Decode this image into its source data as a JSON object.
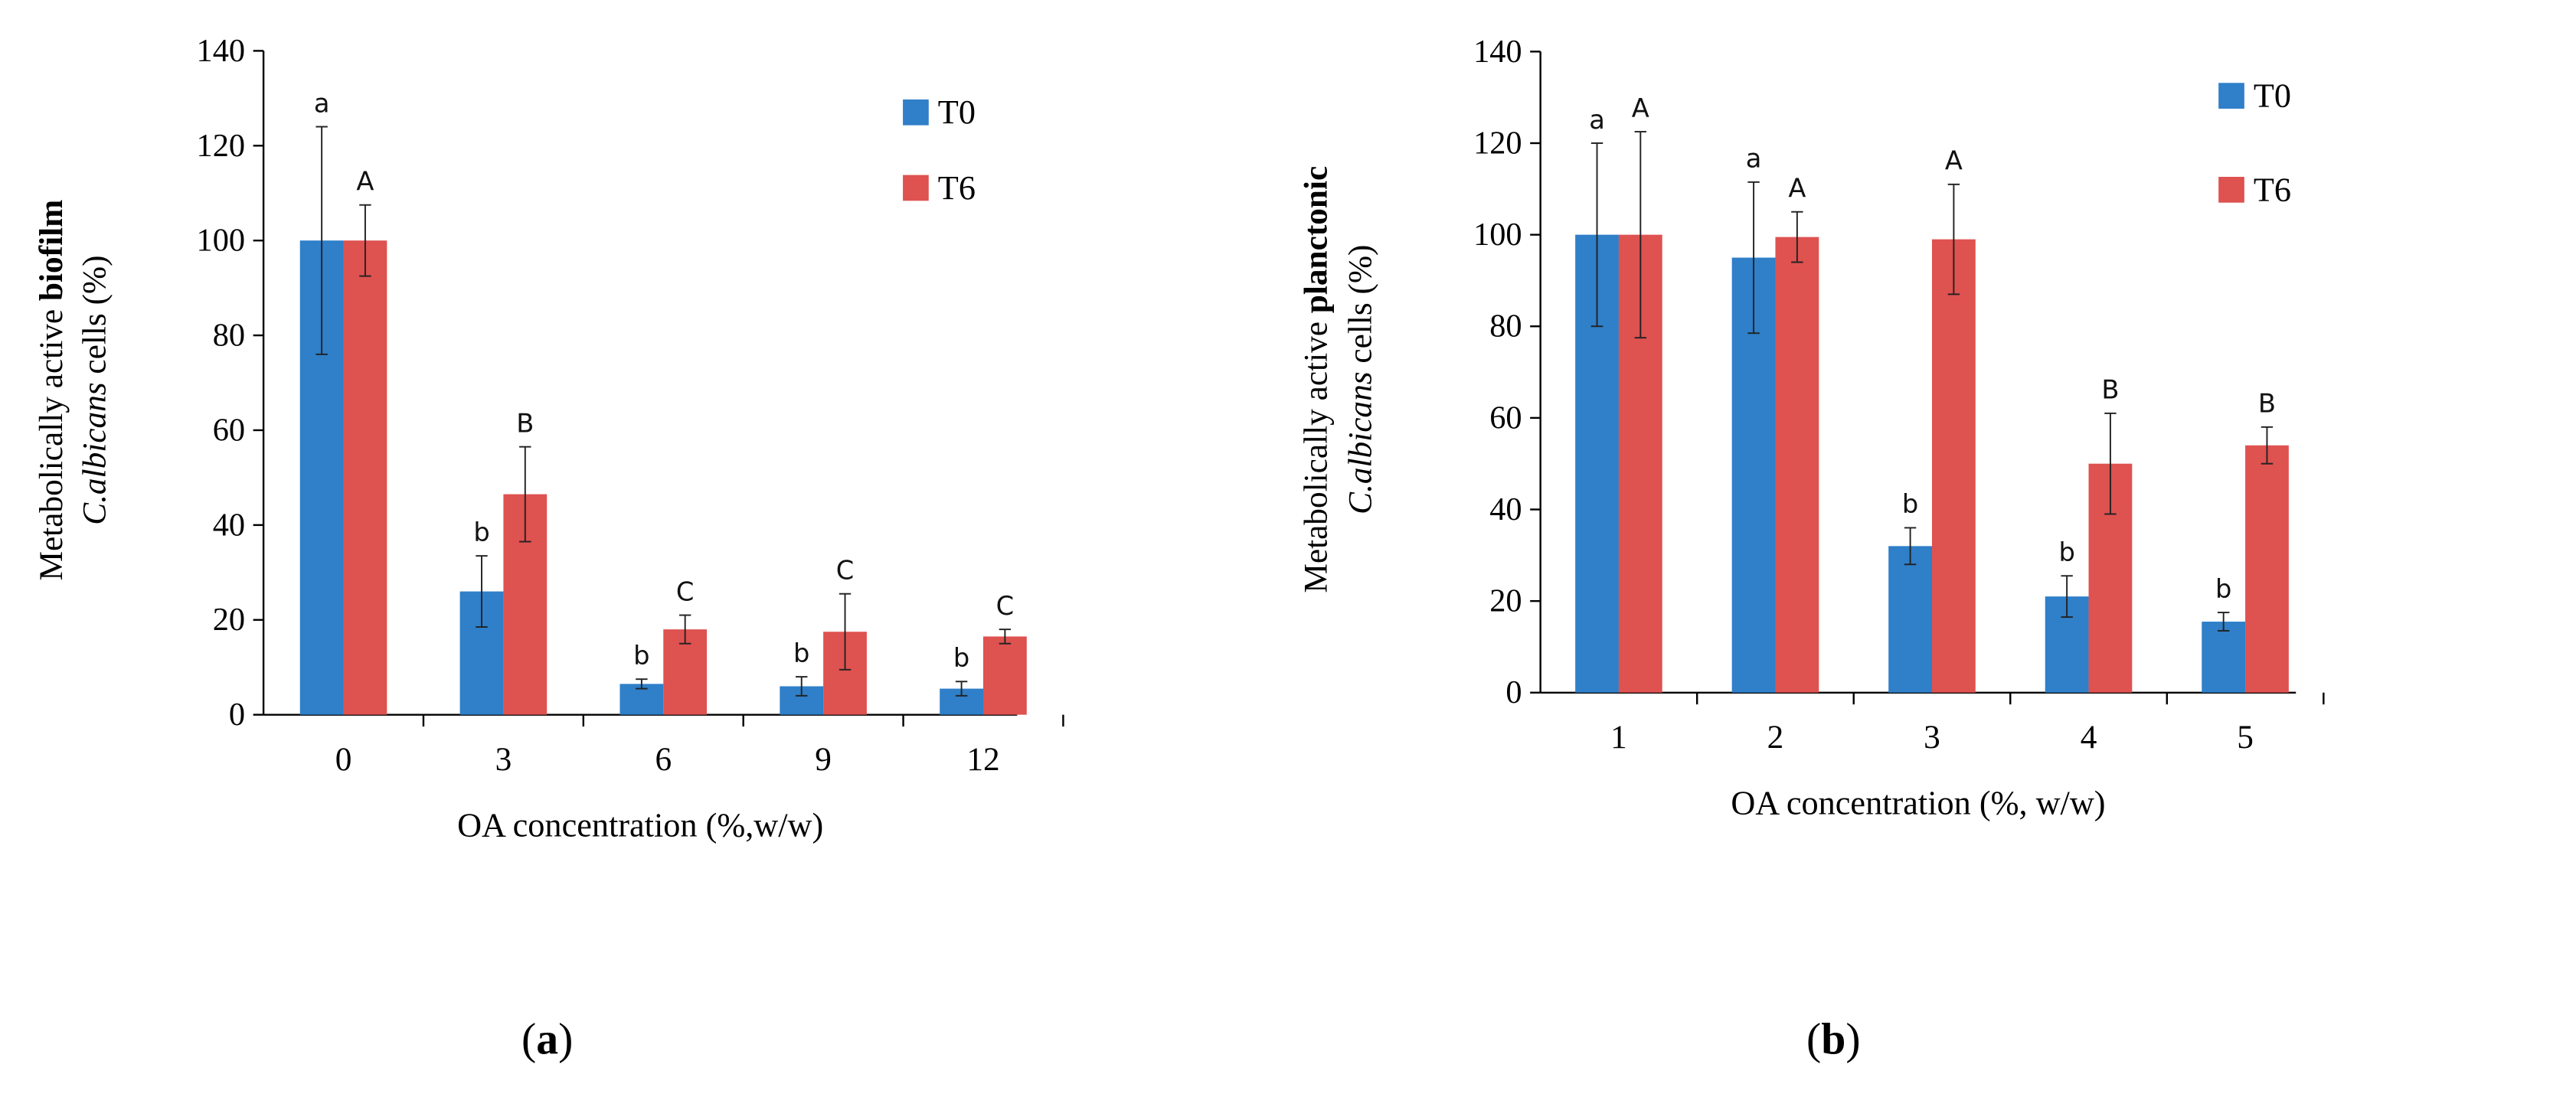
{
  "colors": {
    "T0": "#2f7fc9",
    "T6": "#de5250",
    "axis": "#000000",
    "error": "#222222"
  },
  "chart_data": [
    {
      "panel": "a",
      "type": "bar",
      "caption_open": "(",
      "caption_letter": "a",
      "caption_close": ")",
      "ylabel_line1_prefix": "Metabolically  active",
      "ylabel_line1_bold": "biofilm",
      "ylabel_line2_italic": "C.albicans",
      "ylabel_line2_suffix": "cells (%)",
      "xlabel": "OA concentration  (%,w/w)",
      "ylim": [
        0,
        140
      ],
      "yticks": [
        "0",
        "20",
        "40",
        "60",
        "80",
        "100",
        "120",
        "140"
      ],
      "categories": [
        "0",
        "3",
        "6",
        "9",
        "12"
      ],
      "legend": [
        "T0",
        "T6"
      ],
      "series": [
        {
          "name": "T0",
          "values": [
            100,
            26,
            6.5,
            6,
            5.5
          ],
          "errors": [
            24,
            7.5,
            1,
            2,
            1.5
          ],
          "letters": [
            "a",
            "b",
            "b",
            "b",
            "b"
          ]
        },
        {
          "name": "T6",
          "values": [
            100,
            46.5,
            18,
            17.5,
            16.5
          ],
          "errors": [
            7.5,
            10,
            3,
            8,
            1.5
          ],
          "letters": [
            "A",
            "B",
            "C",
            "C",
            "C"
          ]
        }
      ]
    },
    {
      "panel": "b",
      "type": "bar",
      "caption_open": "(",
      "caption_letter": "b",
      "caption_close": ")",
      "ylabel_line1_prefix": "Metabolically  active",
      "ylabel_line1_bold": "planctonic",
      "ylabel_line2_italic": "C.albicans",
      "ylabel_line2_suffix": "cells (%)",
      "xlabel": "OA concentration  (%, w/w)",
      "ylim": [
        0,
        140
      ],
      "yticks": [
        "0",
        "20",
        "40",
        "60",
        "80",
        "100",
        "120",
        "140"
      ],
      "categories": [
        "1",
        "2",
        "3",
        "4",
        "5"
      ],
      "legend": [
        "T0",
        "T6"
      ],
      "series": [
        {
          "name": "T0",
          "values": [
            100,
            95,
            32,
            21,
            15.5
          ],
          "errors": [
            20,
            16.5,
            4,
            4.5,
            2
          ],
          "letters": [
            "a",
            "a",
            "b",
            "b",
            "b"
          ]
        },
        {
          "name": "T6",
          "values": [
            100,
            99.5,
            99,
            50,
            54
          ],
          "errors": [
            22.5,
            5.5,
            12,
            11,
            4
          ],
          "letters": [
            "A",
            "A",
            "A",
            "B",
            "B"
          ]
        }
      ]
    }
  ]
}
